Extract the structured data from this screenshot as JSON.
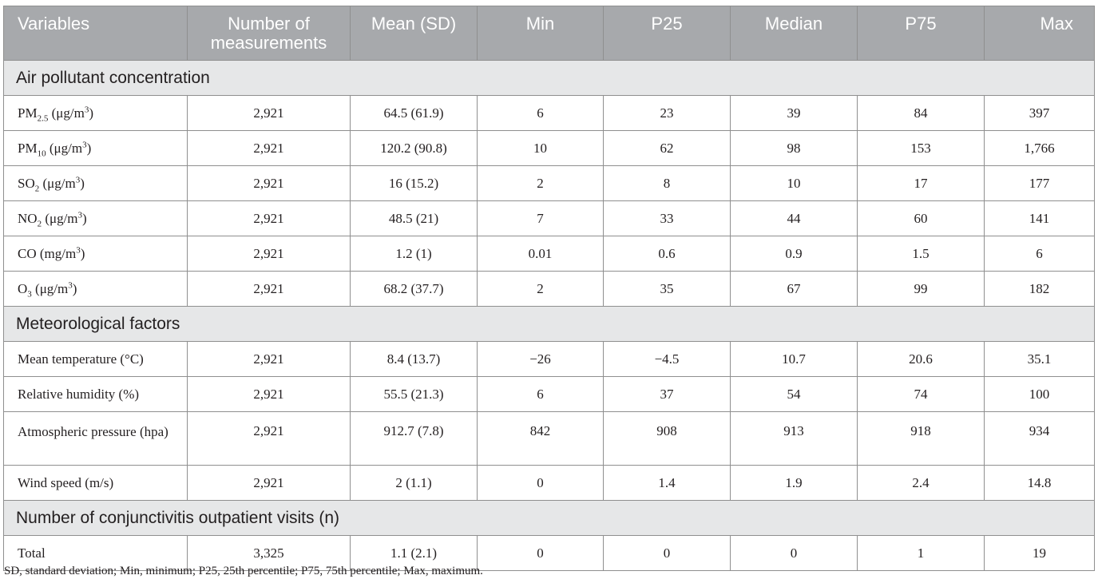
{
  "headers": [
    "Variables",
    "Number of measurements",
    "Mean (SD)",
    "Min",
    "P25",
    "Median",
    "P75",
    "Max"
  ],
  "sections": [
    {
      "title": "Air pollutant concentration",
      "rows": [
        {
          "label": "PM",
          "sub": "2.5",
          "unit": " (μg/m",
          "sup": "3",
          "tail": ")",
          "values": [
            "2,921",
            "64.5 (61.9)",
            "6",
            "23",
            "39",
            "84",
            "397"
          ]
        },
        {
          "label": "PM",
          "sub": "10",
          "unit": " (μg/m",
          "sup": "3",
          "tail": ")",
          "values": [
            "2,921",
            "120.2 (90.8)",
            "10",
            "62",
            "98",
            "153",
            "1,766"
          ]
        },
        {
          "label": "SO",
          "sub": "2",
          "unit": " (μg/m",
          "sup": "3",
          "tail": ")",
          "values": [
            "2,921",
            "16 (15.2)",
            "2",
            "8",
            "10",
            "17",
            "177"
          ]
        },
        {
          "label": "NO",
          "sub": "2",
          "unit": " (μg/m",
          "sup": "3",
          "tail": ")",
          "values": [
            "2,921",
            "48.5 (21)",
            "7",
            "33",
            "44",
            "60",
            "141"
          ]
        },
        {
          "label": "CO",
          "sub": "",
          "unit": " (mg/m",
          "sup": "3",
          "tail": ")",
          "values": [
            "2,921",
            "1.2 (1)",
            "0.01",
            "0.6",
            "0.9",
            "1.5",
            "6"
          ]
        },
        {
          "label": "O",
          "sub": "3",
          "unit": " (μg/m",
          "sup": "3",
          "tail": ")",
          "values": [
            "2,921",
            "68.2 (37.7)",
            "2",
            "35",
            "67",
            "99",
            "182"
          ]
        }
      ]
    },
    {
      "title": "Meteorological factors",
      "rows": [
        {
          "label": "Mean temperature (°C)",
          "sub": "",
          "unit": "",
          "sup": "",
          "tail": "",
          "values": [
            "2,921",
            "8.4 (13.7)",
            "−26",
            "−4.5",
            "10.7",
            "20.6",
            "35.1"
          ]
        },
        {
          "label": "Relative humidity (%)",
          "sub": "",
          "unit": "",
          "sup": "",
          "tail": "",
          "values": [
            "2,921",
            "55.5 (21.3)",
            "6",
            "37",
            "54",
            "74",
            "100"
          ]
        },
        {
          "label": "Atmospheric pressure (hpa)",
          "sub": "",
          "unit": "",
          "sup": "",
          "tail": "",
          "values": [
            "2,921",
            "912.7 (7.8)",
            "842",
            "908",
            "913",
            "918",
            "934"
          ]
        },
        {
          "label": "Wind speed (m/s)",
          "sub": "",
          "unit": "",
          "sup": "",
          "tail": "",
          "values": [
            "2,921",
            "2 (1.1)",
            "0",
            "1.4",
            "1.9",
            "2.4",
            "14.8"
          ]
        }
      ]
    },
    {
      "title": "Number of conjunctivitis outpatient visits (n)",
      "rows": [
        {
          "label": "Total",
          "sub": "",
          "unit": "",
          "sup": "",
          "tail": "",
          "values": [
            "3,325",
            "1.1 (2.1)",
            "0",
            "0",
            "0",
            "1",
            "19"
          ]
        }
      ]
    }
  ],
  "footnote": "SD, standard deviation; Min, minimum; P25, 25th percentile; P75, 75th percentile; Max, maximum."
}
